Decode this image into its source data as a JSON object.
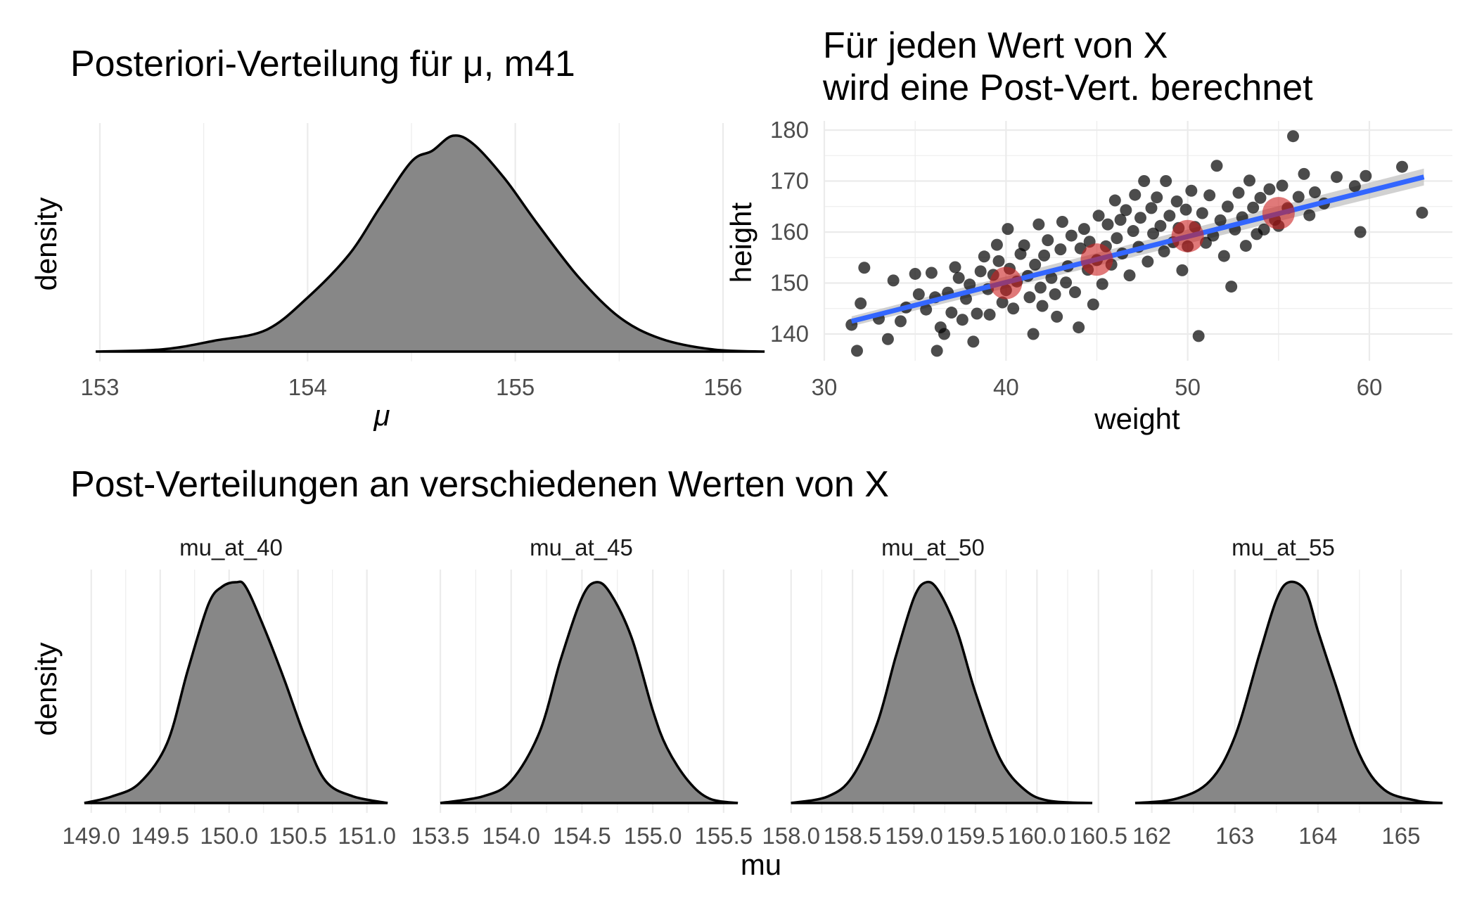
{
  "chart_data": [
    {
      "type": "area",
      "subtype": "density",
      "title": "Posteriori-Verteilung für μ, m41",
      "xlabel": "μ",
      "ylabel": "density",
      "xticks": [
        "153",
        "154",
        "155",
        "156"
      ],
      "xlim": [
        153,
        156.2
      ],
      "fill_color": "#878787",
      "grid": true,
      "x": [
        152.98,
        153.3,
        153.55,
        153.8,
        154.0,
        154.2,
        154.35,
        154.5,
        154.6,
        154.7,
        154.8,
        154.95,
        155.1,
        155.3,
        155.5,
        155.7,
        155.95,
        156.2
      ],
      "density": [
        0.0,
        0.01,
        0.05,
        0.1,
        0.25,
        0.45,
        0.67,
        0.88,
        0.93,
        1.0,
        0.96,
        0.8,
        0.6,
        0.35,
        0.16,
        0.06,
        0.01,
        0.0
      ]
    },
    {
      "type": "scatter",
      "title": "Für jeden Wert von X\nwird eine Post-Vert. berechnet",
      "xlabel": "weight",
      "ylabel": "height",
      "xlim": [
        30,
        65
      ],
      "ylim": [
        135,
        182
      ],
      "xticks": [
        "30",
        "40",
        "50",
        "60"
      ],
      "yticks": [
        "140",
        "150",
        "160",
        "170",
        "180"
      ],
      "grid": true,
      "point_color": "#000000",
      "regression_line": {
        "x0": 31.5,
        "y0": 142.5,
        "x1": 63,
        "y1": 170.8,
        "color": "#3366ff"
      },
      "highlight_points": {
        "color": "#cc1f1f",
        "x": [
          40,
          45,
          50,
          55
        ],
        "y": [
          150,
          154.6,
          159.2,
          163.7
        ]
      },
      "points": [
        [
          31.5,
          141.8
        ],
        [
          32,
          146
        ],
        [
          31.8,
          136.7
        ],
        [
          32.2,
          153
        ],
        [
          33,
          143
        ],
        [
          33.5,
          139
        ],
        [
          33.8,
          150.5
        ],
        [
          34.2,
          142.5
        ],
        [
          34.5,
          145.2
        ],
        [
          35,
          151.8
        ],
        [
          35.2,
          147.8
        ],
        [
          35.6,
          144.8
        ],
        [
          35.9,
          152
        ],
        [
          36.2,
          136.7
        ],
        [
          36.4,
          141.3
        ],
        [
          36.1,
          147.2
        ],
        [
          36.6,
          140
        ],
        [
          36.8,
          148.1
        ],
        [
          37,
          144.2
        ],
        [
          37.2,
          153.1
        ],
        [
          37.4,
          151
        ],
        [
          37.6,
          142.8
        ],
        [
          37.8,
          146.9
        ],
        [
          38,
          149.7
        ],
        [
          38.2,
          138.5
        ],
        [
          38.4,
          144
        ],
        [
          38.6,
          152.3
        ],
        [
          38.8,
          155.2
        ],
        [
          39,
          148.8
        ],
        [
          39.1,
          143.8
        ],
        [
          39.3,
          151.6
        ],
        [
          39.5,
          157.5
        ],
        [
          39.6,
          154.3
        ],
        [
          39.8,
          146.2
        ],
        [
          40,
          148.6
        ],
        [
          40.1,
          160.6
        ],
        [
          40.2,
          152.8
        ],
        [
          40.4,
          145
        ],
        [
          40.6,
          150.3
        ],
        [
          40.8,
          155.7
        ],
        [
          41,
          157.4
        ],
        [
          41.2,
          151.4
        ],
        [
          41.3,
          147.2
        ],
        [
          41.5,
          140
        ],
        [
          41.6,
          153.6
        ],
        [
          41.8,
          161.5
        ],
        [
          41.9,
          149.1
        ],
        [
          42,
          145.5
        ],
        [
          42.1,
          155.4
        ],
        [
          42.3,
          158.4
        ],
        [
          42.5,
          151
        ],
        [
          42.7,
          147.8
        ],
        [
          42.8,
          143.4
        ],
        [
          43,
          156.6
        ],
        [
          43.1,
          162
        ],
        [
          43.3,
          150.1
        ],
        [
          43.4,
          153.3
        ],
        [
          43.6,
          159.3
        ],
        [
          43.8,
          148.2
        ],
        [
          44,
          141.3
        ],
        [
          44.1,
          156.8
        ],
        [
          44.3,
          160.6
        ],
        [
          44.5,
          152.6
        ],
        [
          44.6,
          158.1
        ],
        [
          44.8,
          145.8
        ],
        [
          45,
          154.5
        ],
        [
          45.1,
          163.2
        ],
        [
          45.3,
          149.8
        ],
        [
          45.5,
          157.2
        ],
        [
          45.6,
          161.5
        ],
        [
          45.8,
          153.6
        ],
        [
          46,
          166.2
        ],
        [
          46.1,
          158.8
        ],
        [
          46.3,
          162.4
        ],
        [
          46.4,
          155.8
        ],
        [
          46.6,
          164.3
        ],
        [
          46.8,
          151.5
        ],
        [
          47,
          160.2
        ],
        [
          47.1,
          167.3
        ],
        [
          47.3,
          157.1
        ],
        [
          47.4,
          162.8
        ],
        [
          47.6,
          170
        ],
        [
          47.8,
          154.2
        ],
        [
          48,
          164.7
        ],
        [
          48.1,
          159.7
        ],
        [
          48.3,
          166.8
        ],
        [
          48.5,
          161.2
        ],
        [
          48.7,
          156.2
        ],
        [
          48.8,
          170
        ],
        [
          49,
          163.2
        ],
        [
          49.2,
          158
        ],
        [
          49.4,
          166
        ],
        [
          49.5,
          160.8
        ],
        [
          49.7,
          152.5
        ],
        [
          49.9,
          164.4
        ],
        [
          50,
          157.2
        ],
        [
          50.2,
          168.1
        ],
        [
          50.4,
          161
        ],
        [
          50.6,
          139.6
        ],
        [
          50.8,
          163.7
        ],
        [
          51,
          157.9
        ],
        [
          51.2,
          167.2
        ],
        [
          51.4,
          159.3
        ],
        [
          51.6,
          173
        ],
        [
          51.8,
          162.3
        ],
        [
          52,
          155.3
        ],
        [
          52.2,
          165
        ],
        [
          52.4,
          149.3
        ],
        [
          52.6,
          160.5
        ],
        [
          52.8,
          167.7
        ],
        [
          53,
          162.9
        ],
        [
          53.2,
          157.3
        ],
        [
          53.4,
          170.1
        ],
        [
          53.6,
          164.8
        ],
        [
          53.8,
          159.6
        ],
        [
          54,
          166.7
        ],
        [
          54.2,
          160.5
        ],
        [
          54.5,
          168.4
        ],
        [
          54.8,
          162.4
        ],
        [
          55,
          161.2
        ],
        [
          55.2,
          169.1
        ],
        [
          55.5,
          164.7
        ],
        [
          55.8,
          178.8
        ],
        [
          56.1,
          166.9
        ],
        [
          56.4,
          171.4
        ],
        [
          56.7,
          163.3
        ],
        [
          57,
          167.8
        ],
        [
          57.5,
          165.6
        ],
        [
          58.2,
          170.8
        ],
        [
          59.2,
          169
        ],
        [
          59.5,
          160
        ],
        [
          59.8,
          171
        ],
        [
          61.8,
          172.8
        ],
        [
          62.9,
          163.8
        ]
      ]
    },
    {
      "type": "area",
      "subtype": "density-facets",
      "title": "Post-Verteilungen an verschiedenen Werten von X",
      "xlabel": "mu",
      "ylabel": "density",
      "fill_color": "#878787",
      "facets": [
        {
          "label": "mu_at_40",
          "xlim": [
            148.94,
            151.17
          ],
          "xticks": [
            "149.0",
            "149.5",
            "150.0",
            "150.5",
            "151.0"
          ],
          "x": [
            148.95,
            149.15,
            149.35,
            149.55,
            149.7,
            149.85,
            149.95,
            150.05,
            150.12,
            150.25,
            150.4,
            150.55,
            150.7,
            150.9,
            151.15
          ],
          "density": [
            0.0,
            0.03,
            0.09,
            0.27,
            0.6,
            0.9,
            0.98,
            1.0,
            0.98,
            0.8,
            0.56,
            0.3,
            0.1,
            0.03,
            0.0
          ]
        },
        {
          "label": "mu_at_45",
          "xlim": [
            153.45,
            155.62
          ],
          "xticks": [
            "153.5",
            "154.0",
            "154.5",
            "155.0",
            "155.5"
          ],
          "x": [
            153.5,
            153.8,
            154.0,
            154.2,
            154.35,
            154.5,
            154.6,
            154.7,
            154.85,
            155.0,
            155.1,
            155.25,
            155.4,
            155.6
          ],
          "density": [
            0.0,
            0.03,
            0.1,
            0.32,
            0.65,
            0.93,
            1.0,
            0.95,
            0.75,
            0.42,
            0.25,
            0.1,
            0.02,
            0.0
          ]
        },
        {
          "label": "mu_at_50",
          "xlim": [
            157.95,
            160.45
          ],
          "xticks": [
            "158.0",
            "158.5",
            "159.0",
            "159.5",
            "160.0",
            "160.5"
          ],
          "x": [
            158.0,
            158.3,
            158.5,
            158.7,
            158.85,
            159.0,
            159.1,
            159.2,
            159.35,
            159.5,
            159.7,
            159.9,
            160.1,
            160.45
          ],
          "density": [
            0.0,
            0.03,
            0.12,
            0.36,
            0.66,
            0.93,
            1.0,
            0.96,
            0.78,
            0.5,
            0.2,
            0.06,
            0.01,
            0.0
          ]
        },
        {
          "label": "mu_at_55",
          "xlim": [
            161.8,
            165.5
          ],
          "xticks": [
            "162",
            "163",
            "164",
            "165"
          ],
          "x": [
            161.8,
            162.3,
            162.7,
            163.0,
            163.3,
            163.5,
            163.65,
            163.85,
            164.0,
            164.2,
            164.5,
            164.8,
            165.2,
            165.5
          ],
          "density": [
            0.0,
            0.02,
            0.1,
            0.3,
            0.68,
            0.92,
            1.0,
            0.96,
            0.78,
            0.55,
            0.22,
            0.06,
            0.01,
            0.0
          ]
        }
      ]
    }
  ]
}
